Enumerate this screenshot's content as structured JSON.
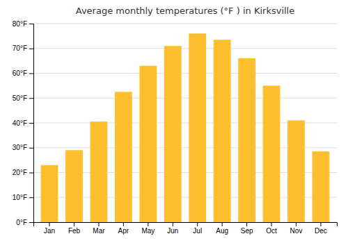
{
  "chart_data": {
    "type": "bar",
    "title": "Average monthly temperatures (°F ) in Kirksville",
    "categories": [
      "Jan",
      "Feb",
      "Mar",
      "Apr",
      "May",
      "Jun",
      "Jul",
      "Aug",
      "Sep",
      "Oct",
      "Nov",
      "Dec"
    ],
    "values": [
      23,
      29,
      40.5,
      52.5,
      63,
      71,
      76,
      73.5,
      66,
      55,
      41,
      28.5
    ],
    "color": "#FFBE2D",
    "ylim": [
      0,
      80
    ],
    "yticks": [
      {
        "value": 0,
        "label": "0°F"
      },
      {
        "value": 10,
        "label": "10°F"
      },
      {
        "value": 20,
        "label": "20°F"
      },
      {
        "value": 30,
        "label": "30°F"
      },
      {
        "value": 40,
        "label": "40°F"
      },
      {
        "value": 50,
        "label": "50°F"
      },
      {
        "value": 60,
        "label": "60°F"
      },
      {
        "value": 70,
        "label": "70°F"
      },
      {
        "value": 80,
        "label": "80°F"
      }
    ],
    "grid": true
  }
}
